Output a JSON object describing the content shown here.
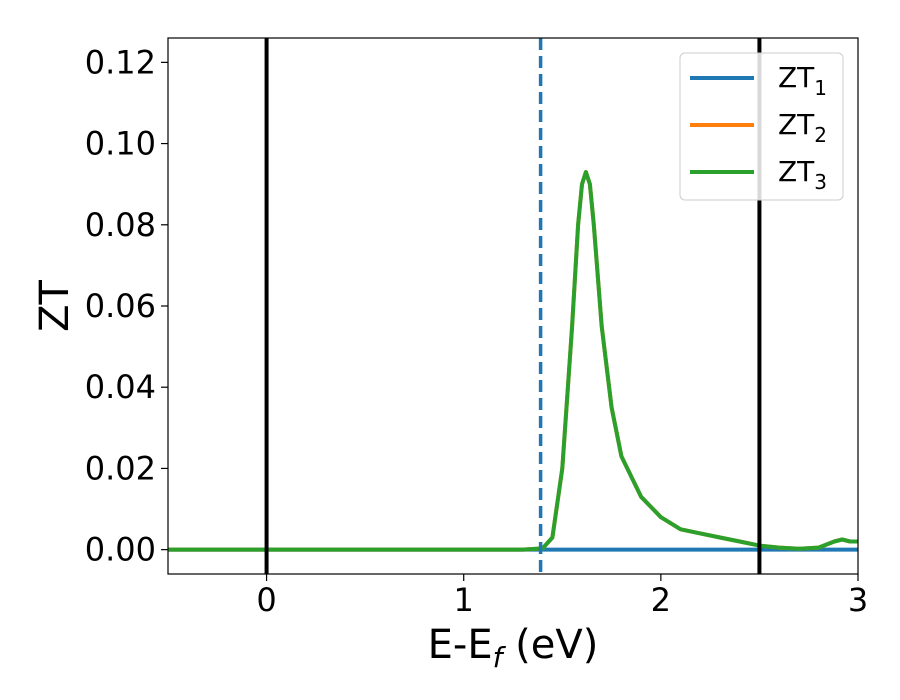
{
  "chart_data": {
    "type": "line",
    "xlabel": {
      "main": "E-E",
      "sub": "f",
      "suffix": " (eV)"
    },
    "ylabel": "ZT",
    "xlim": [
      -0.5,
      3.0
    ],
    "ylim": [
      -0.006,
      0.126
    ],
    "xticks": [
      {
        "value": 0,
        "label": "0"
      },
      {
        "value": 1,
        "label": "1"
      },
      {
        "value": 2,
        "label": "2"
      },
      {
        "value": 3,
        "label": "3"
      }
    ],
    "yticks": [
      {
        "value": 0.0,
        "label": "0.00"
      },
      {
        "value": 0.02,
        "label": "0.02"
      },
      {
        "value": 0.04,
        "label": "0.04"
      },
      {
        "value": 0.06,
        "label": "0.06"
      },
      {
        "value": 0.08,
        "label": "0.08"
      },
      {
        "value": 0.1,
        "label": "0.10"
      },
      {
        "value": 0.12,
        "label": "0.12"
      }
    ],
    "grid": false,
    "legend_position": "top-right",
    "vlines": [
      {
        "x": 0.0,
        "color": "#000000",
        "style": "solid"
      },
      {
        "x": 1.39,
        "color": "#1f77b4",
        "style": "dashed"
      },
      {
        "x": 2.5,
        "color": "#000000",
        "style": "solid"
      }
    ],
    "series": [
      {
        "name": "ZT",
        "sub": "1",
        "color": "#1f77b4",
        "x": [
          -0.5,
          3.0
        ],
        "y": [
          0.0,
          0.0
        ]
      },
      {
        "name": "ZT",
        "sub": "2",
        "color": "#ff7f0e",
        "x": [
          -0.5,
          1.3,
          1.4,
          1.45,
          1.5,
          1.55,
          1.58,
          1.6,
          1.62,
          1.64,
          1.66,
          1.7,
          1.75,
          1.8,
          1.9,
          2.0,
          2.1,
          2.2,
          2.3,
          2.4,
          2.5,
          2.6,
          2.7,
          2.8,
          2.88,
          2.92,
          2.96,
          3.0
        ],
        "y": [
          0.0,
          0.0,
          0.0003,
          0.003,
          0.02,
          0.055,
          0.08,
          0.09,
          0.093,
          0.09,
          0.08,
          0.055,
          0.035,
          0.023,
          0.013,
          0.008,
          0.005,
          0.004,
          0.003,
          0.002,
          0.001,
          0.0005,
          0.0002,
          0.0005,
          0.002,
          0.0025,
          0.002,
          0.002
        ]
      },
      {
        "name": "ZT",
        "sub": "3",
        "color": "#2ca02c",
        "x": [
          -0.5,
          1.3,
          1.4,
          1.45,
          1.5,
          1.55,
          1.58,
          1.6,
          1.62,
          1.64,
          1.66,
          1.7,
          1.75,
          1.8,
          1.9,
          2.0,
          2.1,
          2.2,
          2.3,
          2.4,
          2.5,
          2.6,
          2.7,
          2.8,
          2.88,
          2.92,
          2.96,
          3.0
        ],
        "y": [
          0.0,
          0.0,
          0.0003,
          0.003,
          0.02,
          0.055,
          0.08,
          0.09,
          0.093,
          0.09,
          0.08,
          0.055,
          0.035,
          0.023,
          0.013,
          0.008,
          0.005,
          0.004,
          0.003,
          0.002,
          0.001,
          0.0005,
          0.0002,
          0.0005,
          0.002,
          0.0025,
          0.002,
          0.002
        ]
      }
    ]
  }
}
